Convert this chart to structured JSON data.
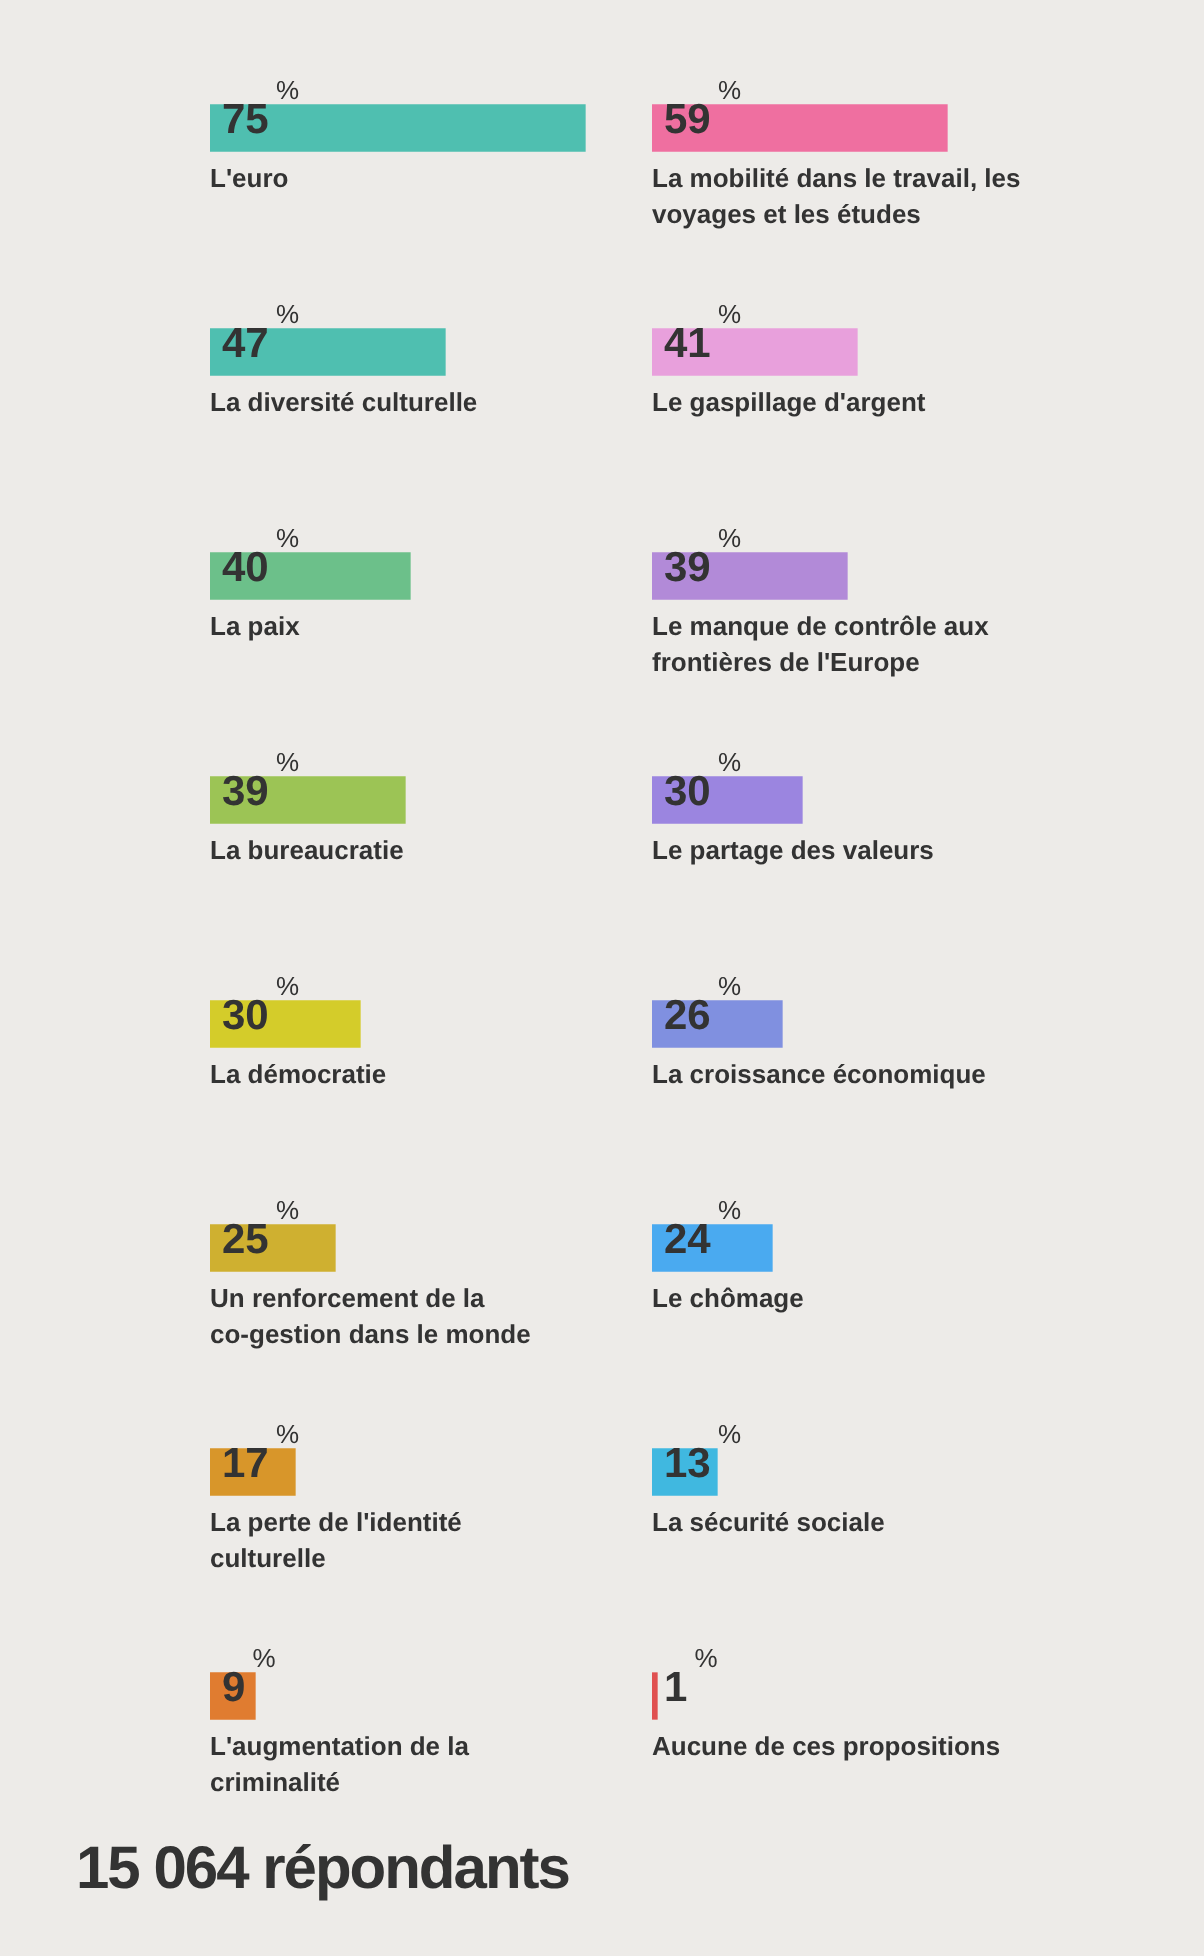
{
  "chart_data": [
    {
      "type": "bar",
      "orientation": "horizontal",
      "categories": [
        "L'euro",
        "La diversité culturelle",
        "La paix",
        "La bureaucratie",
        "La démocratie",
        "Un renforcement de la co-gestion dans le monde",
        "La perte de l'identité culturelle",
        "L'augmentation de la criminalité"
      ],
      "values": [
        75,
        47,
        40,
        39,
        30,
        25,
        17,
        9
      ],
      "value_labels": [
        "75 %",
        "47 %",
        "40 %",
        "39 %",
        "30 %",
        "25 %",
        "17 %",
        "9 %"
      ],
      "colors": [
        "#4fbfb0",
        "#4fbfb0",
        "#6cc08a",
        "#9cc455",
        "#d4cc2a",
        "#cfb030",
        "#d8962a",
        "#e07c30"
      ],
      "legend": false,
      "annotations": [
        "15 064 répondants"
      ]
    },
    {
      "type": "bar",
      "orientation": "horizontal",
      "categories": [
        "La mobilité dans le travail, les voyages et les études",
        "Le gaspillage d'argent",
        "Le manque de contrôle aux frontières de l'Europe",
        "Le partage des valeurs",
        "La croissance économique",
        "Le chômage",
        "La sécurité sociale",
        "Aucune de ces propositions"
      ],
      "values": [
        59,
        41,
        39,
        30,
        26,
        24,
        13,
        1
      ],
      "value_labels": [
        "59 %",
        "41 %",
        "39 %",
        "30 %",
        "26 %",
        "24 %",
        "13 %",
        "1 %"
      ],
      "colors": [
        "#ef6fa0",
        "#e8a0dc",
        "#b28ad8",
        "#9b85e0",
        "#8090e0",
        "#4aaaf0",
        "#40b8e0",
        "#e05050"
      ],
      "legend": false
    }
  ]
}
